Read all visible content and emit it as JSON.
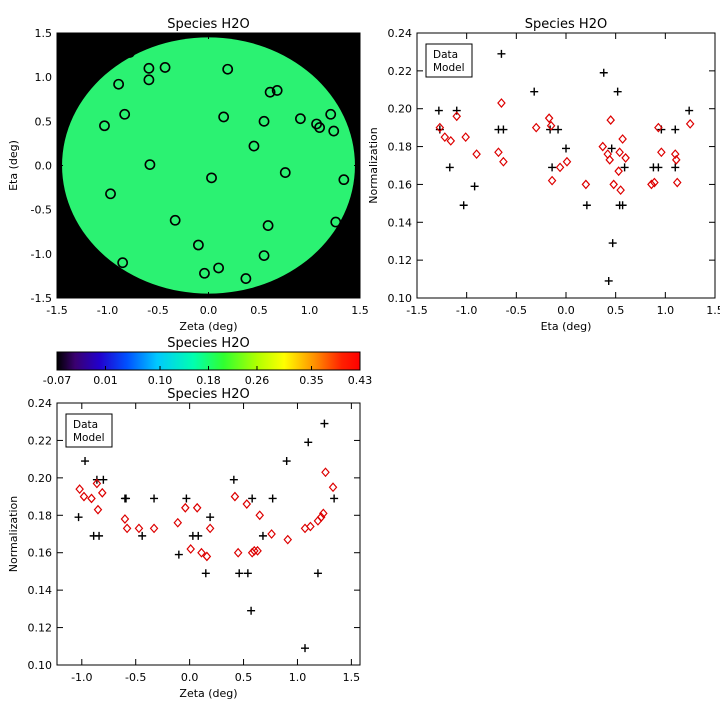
{
  "colors": {
    "data_marker": "#000000",
    "model_marker": "#dd0000",
    "map_background": "#000000",
    "map_fill": "#2bf272",
    "frame": "#000000"
  },
  "chart_data": [
    {
      "id": "map",
      "type": "heatmap",
      "title": "Species H2O",
      "xlabel": "Zeta (deg)",
      "ylabel": "Eta (deg)",
      "xlim": [
        -1.5,
        1.5
      ],
      "ylim": [
        -1.5,
        1.5
      ],
      "xticks": [
        "-1.5",
        "-1.0",
        "-0.5",
        "0.0",
        "0.5",
        "1.0",
        "1.5"
      ],
      "yticks": [
        "-1.5",
        "-1.0",
        "-0.5",
        "0.0",
        "0.5",
        "1.0",
        "1.5"
      ],
      "disk_radius_deg": 1.45,
      "marker": "open-circle",
      "points": [
        [
          -0.78,
          1.28
        ],
        [
          -0.59,
          1.1
        ],
        [
          -0.43,
          1.11
        ],
        [
          0.19,
          1.09
        ],
        [
          -0.89,
          0.92
        ],
        [
          -0.59,
          0.97
        ],
        [
          0.61,
          0.83
        ],
        [
          0.68,
          0.85
        ],
        [
          -0.83,
          0.58
        ],
        [
          0.15,
          0.55
        ],
        [
          -1.03,
          0.45
        ],
        [
          0.55,
          0.5
        ],
        [
          0.91,
          0.53
        ],
        [
          1.07,
          0.47
        ],
        [
          1.1,
          0.43
        ],
        [
          1.21,
          0.58
        ],
        [
          1.24,
          0.39
        ],
        [
          0.45,
          0.22
        ],
        [
          -0.58,
          0.01
        ],
        [
          0.76,
          -0.08
        ],
        [
          1.34,
          -0.16
        ],
        [
          0.03,
          -0.14
        ],
        [
          -0.97,
          -0.32
        ],
        [
          -0.33,
          -0.62
        ],
        [
          1.26,
          -0.64
        ],
        [
          0.59,
          -0.68
        ],
        [
          -0.1,
          -0.9
        ],
        [
          0.55,
          -1.02
        ],
        [
          -0.85,
          -1.1
        ],
        [
          0.1,
          -1.16
        ],
        [
          -0.04,
          -1.22
        ],
        [
          0.37,
          -1.28
        ]
      ],
      "colorbar": {
        "title": "Species H2O",
        "ticks": [
          "-0.07",
          "0.01",
          "0.10",
          "0.18",
          "0.26",
          "0.35",
          "0.43"
        ],
        "range": [
          -0.07,
          0.43
        ]
      }
    },
    {
      "id": "eta",
      "type": "scatter",
      "title": "Species H2O",
      "xlabel": "Eta (deg)",
      "ylabel": "Normalization",
      "xlim": [
        -1.5,
        1.5
      ],
      "ylim": [
        0.1,
        0.24
      ],
      "xticks": [
        "-1.5",
        "-1.0",
        "-0.5",
        "0.0",
        "0.5",
        "1.0",
        "1.5"
      ],
      "yticks": [
        "0.10",
        "0.12",
        "0.14",
        "0.16",
        "0.18",
        "0.20",
        "0.22",
        "0.24"
      ],
      "legend": {
        "position": "top-left",
        "entries": [
          "Data",
          "Model"
        ]
      },
      "series": [
        {
          "name": "Data",
          "marker": "plus",
          "points": [
            [
              -1.28,
              0.199
            ],
            [
              -1.27,
              0.189
            ],
            [
              -1.17,
              0.169
            ],
            [
              -1.1,
              0.199
            ],
            [
              -1.03,
              0.149
            ],
            [
              -0.92,
              0.159
            ],
            [
              -0.68,
              0.189
            ],
            [
              -0.65,
              0.229
            ],
            [
              -0.63,
              0.189
            ],
            [
              -0.32,
              0.209
            ],
            [
              -0.16,
              0.189
            ],
            [
              -0.14,
              0.169
            ],
            [
              -0.08,
              0.189
            ],
            [
              0.0,
              0.179
            ],
            [
              0.21,
              0.149
            ],
            [
              0.38,
              0.219
            ],
            [
              0.43,
              0.109
            ],
            [
              0.46,
              0.179
            ],
            [
              0.47,
              0.129
            ],
            [
              0.52,
              0.209
            ],
            [
              0.54,
              0.149
            ],
            [
              0.57,
              0.149
            ],
            [
              0.59,
              0.169
            ],
            [
              0.88,
              0.169
            ],
            [
              0.93,
              0.169
            ],
            [
              0.96,
              0.189
            ],
            [
              1.1,
              0.169
            ],
            [
              1.1,
              0.189
            ],
            [
              1.24,
              0.199
            ]
          ]
        },
        {
          "name": "Model",
          "marker": "open-diamond",
          "points": [
            [
              -1.27,
              0.19
            ],
            [
              -1.22,
              0.185
            ],
            [
              -1.16,
              0.183
            ],
            [
              -1.1,
              0.196
            ],
            [
              -1.01,
              0.185
            ],
            [
              -0.9,
              0.176
            ],
            [
              -0.68,
              0.177
            ],
            [
              -0.65,
              0.203
            ],
            [
              -0.63,
              0.172
            ],
            [
              -0.3,
              0.19
            ],
            [
              -0.17,
              0.195
            ],
            [
              -0.15,
              0.191
            ],
            [
              -0.14,
              0.162
            ],
            [
              -0.06,
              0.169
            ],
            [
              0.01,
              0.172
            ],
            [
              0.2,
              0.16
            ],
            [
              0.37,
              0.18
            ],
            [
              0.42,
              0.176
            ],
            [
              0.44,
              0.173
            ],
            [
              0.45,
              0.194
            ],
            [
              0.48,
              0.16
            ],
            [
              0.53,
              0.167
            ],
            [
              0.54,
              0.177
            ],
            [
              0.55,
              0.157
            ],
            [
              0.57,
              0.184
            ],
            [
              0.6,
              0.174
            ],
            [
              0.86,
              0.16
            ],
            [
              0.89,
              0.161
            ],
            [
              0.93,
              0.19
            ],
            [
              0.96,
              0.177
            ],
            [
              1.1,
              0.176
            ],
            [
              1.11,
              0.173
            ],
            [
              1.12,
              0.161
            ],
            [
              1.25,
              0.192
            ]
          ]
        }
      ]
    },
    {
      "id": "zeta",
      "type": "scatter",
      "title": "Species H2O",
      "xlabel": "Zeta (deg)",
      "ylabel": "Normalization",
      "xlim": [
        -1.23,
        1.58
      ],
      "ylim": [
        0.1,
        0.24
      ],
      "xticks": [
        "-1.0",
        "-0.5",
        "0.0",
        "0.5",
        "1.0",
        "1.5"
      ],
      "xtick_values": [
        -1.0,
        -0.5,
        0.0,
        0.5,
        1.0,
        1.5
      ],
      "yticks": [
        "0.10",
        "0.12",
        "0.14",
        "0.16",
        "0.18",
        "0.20",
        "0.22",
        "0.24"
      ],
      "legend": {
        "position": "top-left",
        "entries": [
          "Data",
          "Model"
        ]
      },
      "series": [
        {
          "name": "Data",
          "marker": "plus",
          "points": [
            [
              -1.03,
              0.179
            ],
            [
              -0.97,
              0.209
            ],
            [
              -0.89,
              0.169
            ],
            [
              -0.86,
              0.199
            ],
            [
              -0.84,
              0.169
            ],
            [
              -0.8,
              0.199
            ],
            [
              -0.6,
              0.189
            ],
            [
              -0.59,
              0.189
            ],
            [
              -0.44,
              0.169
            ],
            [
              -0.33,
              0.189
            ],
            [
              -0.1,
              0.159
            ],
            [
              -0.03,
              0.189
            ],
            [
              0.03,
              0.169
            ],
            [
              0.08,
              0.169
            ],
            [
              0.15,
              0.149
            ],
            [
              0.19,
              0.179
            ],
            [
              0.41,
              0.199
            ],
            [
              0.46,
              0.149
            ],
            [
              0.54,
              0.149
            ],
            [
              0.57,
              0.129
            ],
            [
              0.58,
              0.189
            ],
            [
              0.68,
              0.169
            ],
            [
              0.77,
              0.189
            ],
            [
              0.9,
              0.209
            ],
            [
              1.07,
              0.109
            ],
            [
              1.1,
              0.219
            ],
            [
              1.19,
              0.149
            ],
            [
              1.25,
              0.229
            ],
            [
              1.34,
              0.189
            ]
          ]
        },
        {
          "name": "Model",
          "marker": "open-diamond",
          "points": [
            [
              -1.02,
              0.194
            ],
            [
              -0.98,
              0.19
            ],
            [
              -0.91,
              0.189
            ],
            [
              -0.86,
              0.197
            ],
            [
              -0.85,
              0.183
            ],
            [
              -0.81,
              0.192
            ],
            [
              -0.6,
              0.178
            ],
            [
              -0.58,
              0.173
            ],
            [
              -0.47,
              0.173
            ],
            [
              -0.33,
              0.173
            ],
            [
              -0.11,
              0.176
            ],
            [
              -0.04,
              0.184
            ],
            [
              0.01,
              0.162
            ],
            [
              0.07,
              0.184
            ],
            [
              0.11,
              0.16
            ],
            [
              0.16,
              0.158
            ],
            [
              0.19,
              0.173
            ],
            [
              0.42,
              0.19
            ],
            [
              0.45,
              0.16
            ],
            [
              0.53,
              0.186
            ],
            [
              0.58,
              0.16
            ],
            [
              0.6,
              0.161
            ],
            [
              0.63,
              0.161
            ],
            [
              0.65,
              0.18
            ],
            [
              0.76,
              0.17
            ],
            [
              0.91,
              0.167
            ],
            [
              1.07,
              0.173
            ],
            [
              1.12,
              0.174
            ],
            [
              1.19,
              0.177
            ],
            [
              1.22,
              0.179
            ],
            [
              1.24,
              0.181
            ],
            [
              1.26,
              0.203
            ],
            [
              1.33,
              0.195
            ]
          ]
        }
      ]
    }
  ]
}
